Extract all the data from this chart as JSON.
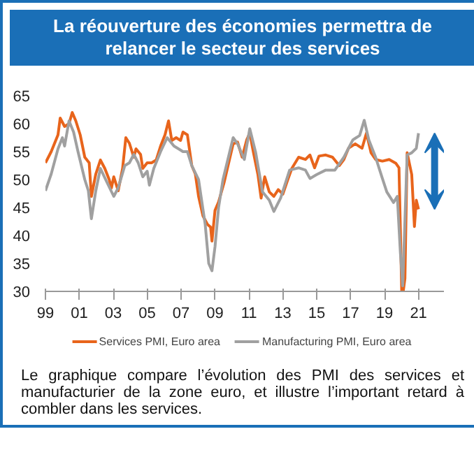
{
  "chart_data": {
    "type": "line",
    "title": "La réouverture des économies permettra de relancer le secteur des services",
    "annotations": [
      "Le graphique compare l’évolution des PMI des services et manufacturier de la zone euro, et illustre l’important retard à combler dans les services."
    ],
    "xlim": [
      1999,
      2022.5
    ],
    "xticks": [
      {
        "value": 1999,
        "label": "99"
      },
      {
        "value": 2001,
        "label": "01"
      },
      {
        "value": 2003,
        "label": "03"
      },
      {
        "value": 2005,
        "label": "05"
      },
      {
        "value": 2007,
        "label": "07"
      },
      {
        "value": 2009,
        "label": "09"
      },
      {
        "value": 2011,
        "label": "11"
      },
      {
        "value": 2013,
        "label": "13"
      },
      {
        "value": 2015,
        "label": "15"
      },
      {
        "value": 2017,
        "label": "17"
      },
      {
        "value": 2019,
        "label": "19"
      },
      {
        "value": 2021,
        "label": "21"
      }
    ],
    "ylim": [
      30,
      65
    ],
    "yticks": [
      30,
      35,
      40,
      45,
      50,
      55,
      60,
      65
    ],
    "grid": false,
    "legend": "bottom",
    "series": [
      {
        "name": "Services PMI, Euro area",
        "color": "#e8641b",
        "x": [
          1999.0,
          1999.34,
          1999.74,
          1999.87,
          2000.13,
          2000.39,
          2000.58,
          2000.79,
          2001.05,
          2001.32,
          2001.58,
          2001.71,
          2001.97,
          2002.24,
          2002.5,
          2002.76,
          2002.89,
          2003.03,
          2003.29,
          2003.55,
          2003.74,
          2003.95,
          2004.21,
          2004.34,
          2004.61,
          2004.74,
          2005.0,
          2005.26,
          2005.53,
          2005.79,
          2006.05,
          2006.26,
          2006.45,
          2006.71,
          2006.97,
          2007.11,
          2007.37,
          2007.63,
          2007.84,
          2008.03,
          2008.29,
          2008.55,
          2008.74,
          2008.82,
          2009.0,
          2009.21,
          2009.53,
          2009.8,
          2010.07,
          2010.33,
          2010.6,
          2010.87,
          2011.05,
          2011.27,
          2011.53,
          2011.72,
          2011.93,
          2012.2,
          2012.47,
          2012.73,
          2013.0,
          2013.27,
          2013.53,
          2013.93,
          2014.33,
          2014.6,
          2014.87,
          2015.13,
          2015.53,
          2015.93,
          2016.33,
          2016.6,
          2016.87,
          2017.27,
          2017.67,
          2017.93,
          2018.2,
          2018.47,
          2018.87,
          2019.27,
          2019.67,
          2019.85,
          2020.01,
          2020.1,
          2020.2,
          2020.33,
          2020.6,
          2020.76,
          2020.87,
          2021.0
        ],
        "values": [
          53,
          55,
          58,
          61,
          59.5,
          60,
          62,
          60.5,
          58,
          54,
          53,
          47,
          51,
          53.5,
          52,
          50,
          48.5,
          50.5,
          48,
          52,
          57.5,
          56.5,
          54,
          55.5,
          54.5,
          52,
          53,
          53,
          53.5,
          56,
          58,
          60.5,
          57,
          57.5,
          57,
          58.5,
          58,
          52.5,
          51,
          47,
          43.5,
          42,
          41.5,
          39,
          44.5,
          46,
          49.4,
          52.9,
          56.4,
          56.7,
          54,
          57.1,
          58.3,
          54.8,
          50.9,
          46.7,
          50.5,
          47.8,
          47,
          48.2,
          47.4,
          49.8,
          52,
          54,
          53.6,
          54.4,
          52.1,
          54.2,
          54.4,
          54,
          52.5,
          53.6,
          55.6,
          56.4,
          55.6,
          58.3,
          54.8,
          53.6,
          53.3,
          53.6,
          52.9,
          52.1,
          30,
          30,
          32.3,
          54.8,
          50.9,
          41.6,
          46.3,
          44.7
        ]
      },
      {
        "name": "Manufacturing PMI, Euro area",
        "color": "#a0a0a0",
        "x": [
          1999.0,
          1999.34,
          1999.74,
          2000.0,
          2000.13,
          2000.39,
          2000.66,
          2000.92,
          2001.32,
          2001.53,
          2001.71,
          2001.97,
          2002.24,
          2002.63,
          2003.03,
          2003.29,
          2003.68,
          2003.95,
          2004.21,
          2004.47,
          2004.74,
          2005.0,
          2005.13,
          2005.39,
          2005.79,
          2006.18,
          2006.58,
          2007.11,
          2007.37,
          2007.63,
          2008.03,
          2008.42,
          2008.63,
          2008.82,
          2009.0,
          2009.21,
          2009.47,
          2010.07,
          2010.33,
          2010.73,
          2011.05,
          2011.4,
          2011.8,
          2012.2,
          2012.47,
          2012.87,
          2013.4,
          2013.93,
          2014.33,
          2014.6,
          2015.0,
          2015.53,
          2016.07,
          2016.6,
          2017.13,
          2017.53,
          2017.8,
          2018.07,
          2018.47,
          2018.87,
          2019.13,
          2019.53,
          2019.75,
          2019.93,
          2020.07,
          2020.33,
          2020.6,
          2020.87,
          2021.0
        ],
        "values": [
          48,
          51,
          55.5,
          57.5,
          56,
          60.5,
          58.5,
          55,
          50,
          48,
          43,
          48,
          52,
          49.5,
          47,
          48.5,
          52.5,
          53,
          54.5,
          53,
          50.5,
          51.5,
          49,
          52,
          55,
          57.5,
          56,
          55,
          55,
          52.5,
          50,
          42,
          35,
          33.7,
          38,
          45,
          50,
          57.5,
          56.4,
          53.6,
          59.1,
          54.8,
          47.8,
          46.3,
          44.3,
          46.7,
          51.7,
          52.1,
          51.7,
          50.2,
          50.9,
          51.7,
          51.7,
          54,
          57.1,
          57.9,
          60.6,
          57.1,
          54,
          50.2,
          47.8,
          45.9,
          47,
          37,
          31,
          54.4,
          54.8,
          55.6,
          58.3
        ]
      }
    ]
  }
}
